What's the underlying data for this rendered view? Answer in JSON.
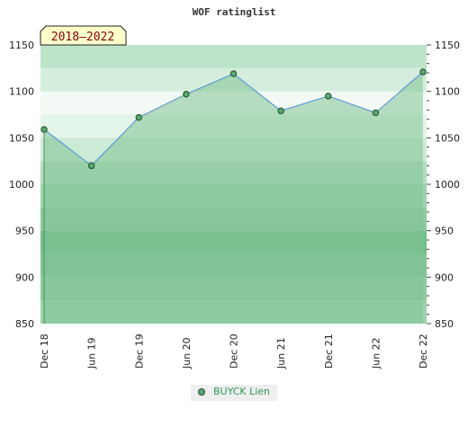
{
  "chart_data": {
    "type": "area",
    "title": "WOF ratinglist",
    "period_label": "2018–2022",
    "categories": [
      "Dec 18",
      "Jun 19",
      "Dec 19",
      "Jun 20",
      "Dec 20",
      "Jun 21",
      "Dec 21",
      "Jun 22",
      "Dec 22"
    ],
    "series": [
      {
        "name": "BUYCK Lien",
        "values": [
          1059,
          1020,
          1072,
          1097,
          1119,
          1079,
          1095,
          1077,
          1121
        ]
      }
    ],
    "ylim": [
      850,
      1150
    ],
    "yticks": [
      850,
      900,
      950,
      1000,
      1050,
      1100,
      1150
    ],
    "y_axis_both_sides": true,
    "legend_position": "bottom-center",
    "colors": {
      "line": "#5b9bd5",
      "marker": "#5aa86e",
      "area": "#82c395",
      "legend_text": "#2e9a58"
    }
  }
}
